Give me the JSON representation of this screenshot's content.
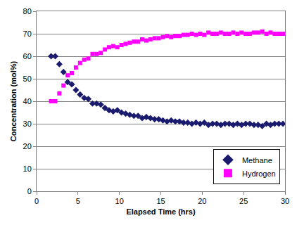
{
  "chart_data": {
    "type": "scatter",
    "x_label": "Elapsed Time (hrs)",
    "y_label": "Concentration (mol%)",
    "x": [
      1.75,
      2.25,
      2.75,
      3.25,
      3.75,
      4.25,
      4.75,
      5.25,
      5.75,
      6.25,
      6.75,
      7.25,
      7.75,
      8.25,
      8.75,
      9.25,
      9.75,
      10.25,
      10.75,
      11.25,
      11.75,
      12.25,
      12.75,
      13.25,
      13.75,
      14.25,
      14.75,
      15.25,
      15.75,
      16.25,
      16.75,
      17.25,
      17.75,
      18.25,
      18.75,
      19.25,
      19.75,
      20.25,
      20.75,
      21.25,
      21.75,
      22.25,
      22.75,
      23.25,
      23.75,
      24.25,
      24.75,
      25.25,
      25.75,
      26.25,
      26.75,
      27.25,
      27.75,
      28.25,
      28.75,
      29.25,
      29.75
    ],
    "series": [
      {
        "name": "Methane",
        "color": "#1a1a6e",
        "marker": "diamond",
        "values": [
          60,
          60,
          56.5,
          53,
          48.5,
          47.5,
          45,
          43,
          41.5,
          41,
          39,
          39,
          38.5,
          37,
          36,
          35.5,
          36,
          35,
          34.5,
          34,
          33.5,
          33.5,
          32.5,
          33,
          32.5,
          32,
          32,
          31.5,
          31,
          31.5,
          31,
          31,
          30.5,
          30.5,
          30,
          30.5,
          30,
          30.5,
          29.5,
          30,
          30,
          29.5,
          30,
          30,
          29.5,
          30,
          29.5,
          30,
          30,
          29.5,
          29.5,
          29,
          30,
          29.5,
          30,
          30,
          30
        ]
      },
      {
        "name": "Hydrogen",
        "color": "#ff00ff",
        "marker": "square",
        "values": [
          40,
          40,
          43.5,
          47,
          51.5,
          52.5,
          55,
          57,
          58.5,
          59,
          61,
          61,
          61.5,
          63,
          64,
          64.5,
          64,
          65,
          65.5,
          66,
          66.5,
          66.5,
          67.5,
          67,
          67.5,
          68,
          68,
          68.5,
          69,
          68.5,
          69,
          69,
          69.5,
          69.5,
          70,
          69.5,
          70,
          69.5,
          70.5,
          70,
          70,
          70.5,
          70,
          70,
          70.5,
          70,
          70.5,
          70,
          70,
          70.5,
          70.5,
          71,
          70,
          70.5,
          70,
          70,
          70
        ]
      }
    ],
    "xlim": [
      0,
      30
    ],
    "xticks": [
      0,
      5,
      10,
      15,
      20,
      25,
      30
    ],
    "ylim": [
      0,
      80
    ],
    "yticks": [
      0,
      10,
      20,
      30,
      40,
      50,
      60,
      70,
      80
    ],
    "grid": true,
    "legend": "bottom-right"
  }
}
